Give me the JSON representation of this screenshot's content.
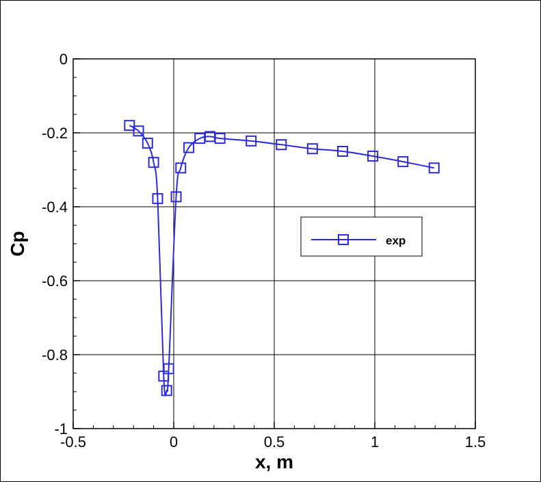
{
  "chart_data": {
    "type": "line",
    "xlabel": "x, m",
    "ylabel": "Cp",
    "xlim": [
      -0.5,
      1.5
    ],
    "ylim": [
      -1,
      0
    ],
    "xticks": [
      "-0.5",
      "0",
      "0.5",
      "1",
      "1.5"
    ],
    "yticks": [
      "0",
      "-0.2",
      "-0.4",
      "-0.6",
      "-0.8",
      "-1"
    ],
    "grid": true,
    "legend_position": "right-middle",
    "series": [
      {
        "name": "exp",
        "color": "#2b2bd9",
        "marker": "square-open",
        "x": [
          -0.22,
          -0.175,
          -0.13,
          -0.1,
          -0.08,
          -0.05,
          -0.035,
          -0.025,
          0.012,
          0.035,
          0.075,
          0.13,
          0.18,
          0.23,
          0.385,
          0.535,
          0.69,
          0.84,
          0.99,
          1.14,
          1.295
        ],
        "y": [
          -0.18,
          -0.195,
          -0.228,
          -0.28,
          -0.378,
          -0.858,
          -0.897,
          -0.838,
          -0.373,
          -0.295,
          -0.24,
          -0.215,
          -0.21,
          -0.215,
          -0.222,
          -0.232,
          -0.243,
          -0.25,
          -0.263,
          -0.278,
          -0.295
        ]
      }
    ]
  }
}
